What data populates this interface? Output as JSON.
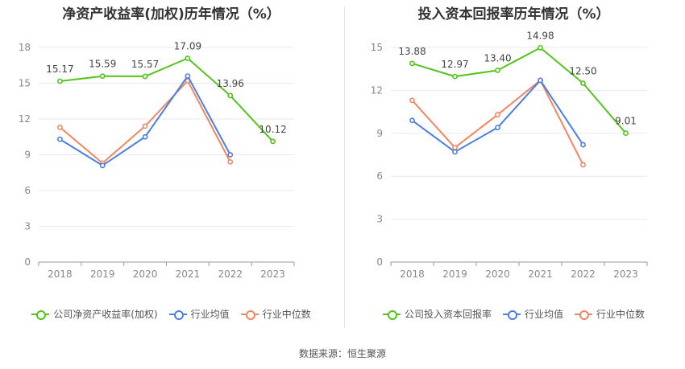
{
  "source": "数据来源：恒生聚源",
  "chart_data": [
    {
      "type": "line",
      "title": "净资产收益率(加权)历年情况（%）",
      "categories": [
        "2018",
        "2019",
        "2020",
        "2021",
        "2022",
        "2023"
      ],
      "ylim": [
        0,
        18
      ],
      "yticks": [
        "0",
        "3",
        "6",
        "9",
        "12",
        "15",
        "18"
      ],
      "grid": true,
      "legend": "bottom",
      "series": [
        {
          "name": "公司净资产收益率(加权)",
          "color": "#52c41a",
          "values": [
            15.17,
            15.59,
            15.57,
            17.09,
            13.96,
            10.12
          ],
          "labels": [
            "15.17",
            "15.59",
            "15.57",
            "17.09",
            "13.96",
            "10.12"
          ]
        },
        {
          "name": "行业均值",
          "color": "#4d7fe0",
          "values": [
            10.3,
            8.1,
            10.5,
            15.6,
            9.0,
            null
          ]
        },
        {
          "name": "行业中位数",
          "color": "#f0875f",
          "values": [
            11.3,
            8.3,
            11.4,
            15.2,
            8.4,
            null
          ]
        }
      ]
    },
    {
      "type": "line",
      "title": "投入资本回报率历年情况（%）",
      "categories": [
        "2018",
        "2019",
        "2020",
        "2021",
        "2022",
        "2023"
      ],
      "ylim": [
        0,
        15
      ],
      "yticks": [
        "0",
        "3",
        "6",
        "9",
        "12",
        "15"
      ],
      "grid": true,
      "legend": "bottom",
      "series": [
        {
          "name": "公司投入资本回报率",
          "color": "#52c41a",
          "values": [
            13.88,
            12.97,
            13.4,
            14.98,
            12.5,
            9.01
          ],
          "labels": [
            "13.88",
            "12.97",
            "13.40",
            "14.98",
            "12.50",
            "9.01"
          ]
        },
        {
          "name": "行业均值",
          "color": "#4d7fe0",
          "values": [
            9.9,
            7.7,
            9.4,
            12.7,
            8.2,
            null
          ]
        },
        {
          "name": "行业中位数",
          "color": "#f0875f",
          "values": [
            11.3,
            8.0,
            10.3,
            12.7,
            6.8,
            null
          ]
        }
      ]
    }
  ]
}
